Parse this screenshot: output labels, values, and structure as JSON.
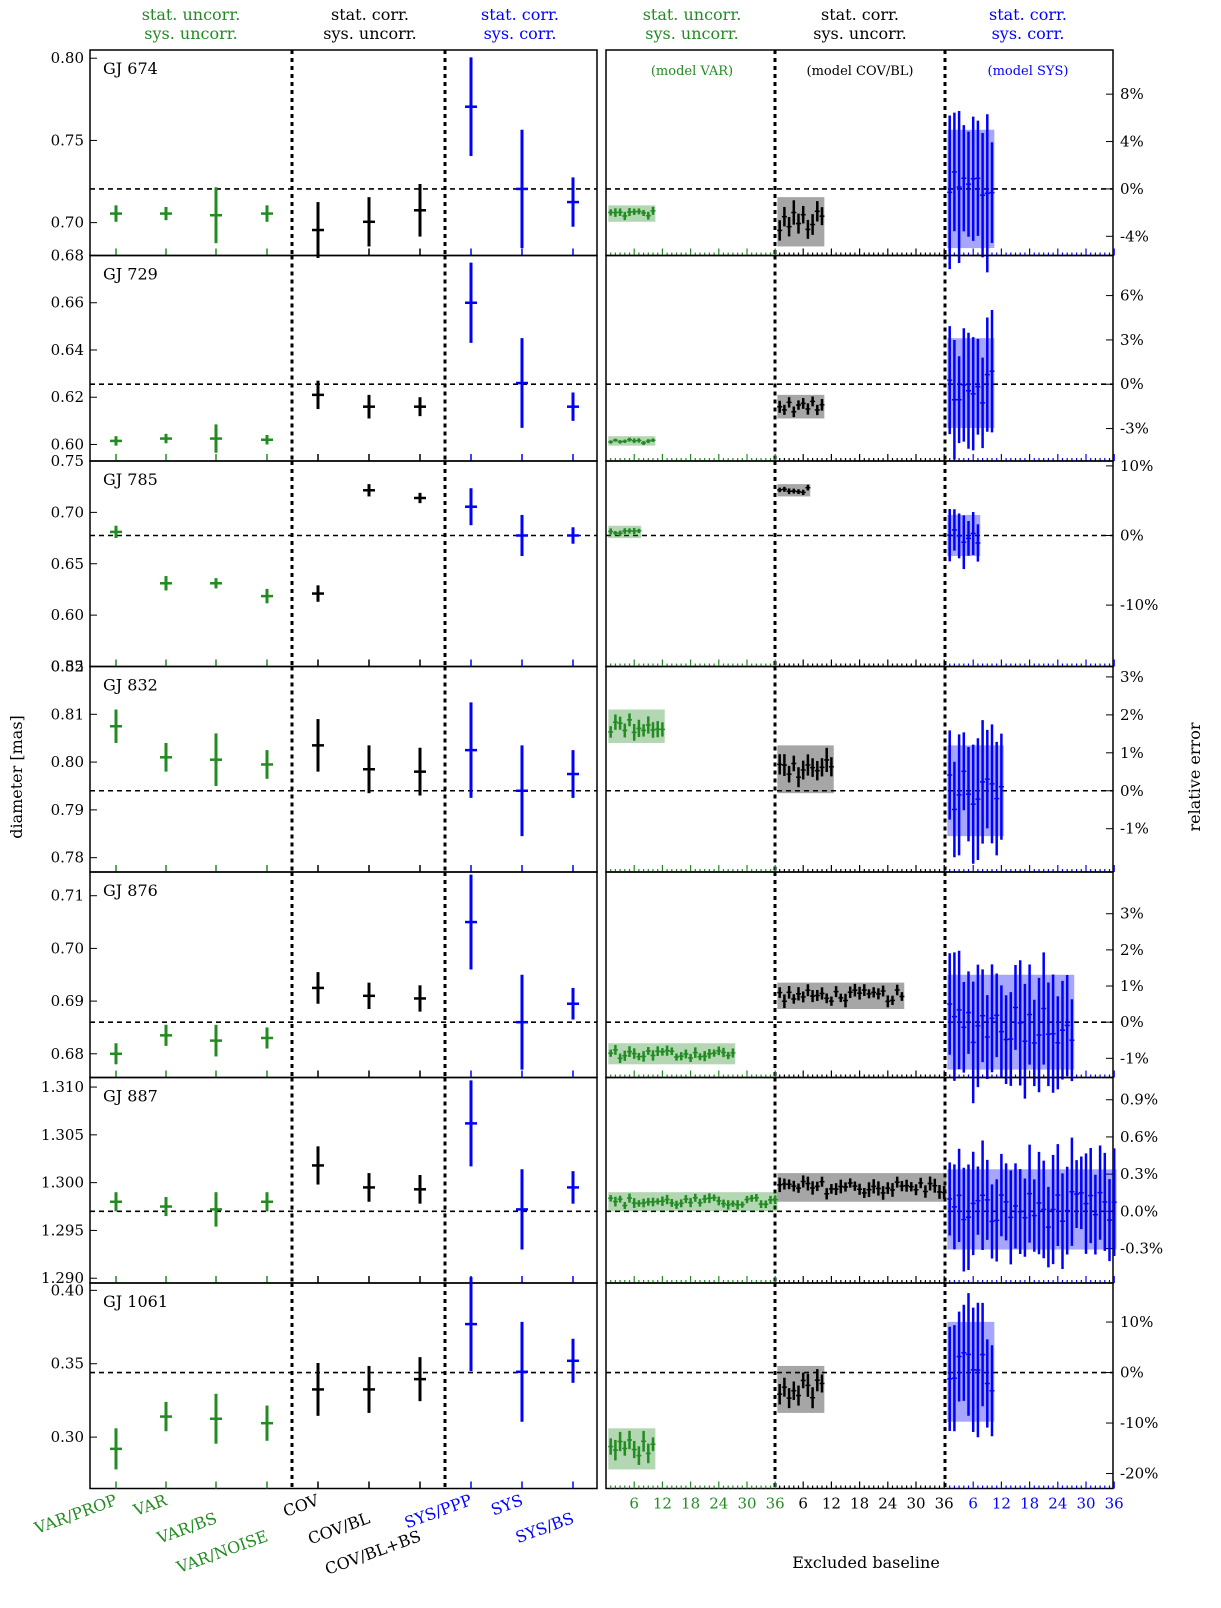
{
  "colors": {
    "green": "#228B22",
    "black": "#000000",
    "blue": "#0000FF"
  },
  "chart_data": {
    "type": "errorbar",
    "ylabel_left": "diameter [mas]",
    "ylabel_right": "relative error",
    "xlabel_right": "Excluded baseline",
    "group_headers": [
      {
        "line1": "stat. uncorr.",
        "line2": "sys. uncorr.",
        "color": "green"
      },
      {
        "line1": "stat. corr.",
        "line2": "sys. uncorr.",
        "color": "black"
      },
      {
        "line1": "stat. corr.",
        "line2": "sys. corr.",
        "color": "blue"
      }
    ],
    "model_labels": [
      {
        "text": "(model VAR)",
        "color": "green"
      },
      {
        "text": "(model COV/BL)",
        "color": "black"
      },
      {
        "text": "(model SYS)",
        "color": "blue"
      }
    ],
    "methods": [
      {
        "label": "VAR/PROP",
        "color": "green"
      },
      {
        "label": "VAR",
        "color": "green"
      },
      {
        "label": "VAR/BS",
        "color": "green"
      },
      {
        "label": "VAR/NOISE",
        "color": "green"
      },
      {
        "label": "COV",
        "color": "black"
      },
      {
        "label": "COV/BL",
        "color": "black"
      },
      {
        "label": "COV/BL+BS",
        "color": "black"
      },
      {
        "label": "SYS/PPP",
        "color": "blue"
      },
      {
        "label": "SYS",
        "color": "blue"
      },
      {
        "label": "SYS/BS",
        "color": "blue"
      }
    ],
    "baseline_ticks": [
      "6",
      "12",
      "18",
      "24",
      "30",
      "36"
    ],
    "stars": [
      {
        "name": "GJ 674",
        "ref": 0.7205,
        "ylim": [
          0.68,
          0.805
        ],
        "yticks": [
          "0.70",
          "0.75",
          "0.80"
        ],
        "rel_ticks": [
          "8%",
          "4%",
          "0%",
          "-4%"
        ],
        "n_baselines": 10,
        "values": [
          [
            0.7055,
            0.005
          ],
          [
            0.7055,
            0.004
          ],
          [
            0.7045,
            0.017
          ],
          [
            0.7055,
            0.005
          ],
          [
            0.6955,
            0.017
          ],
          [
            0.7005,
            0.015
          ],
          [
            0.7075,
            0.016
          ],
          [
            0.7705,
            0.03
          ],
          [
            0.7205,
            0.036
          ],
          [
            0.7125,
            0.015
          ]
        ]
      },
      {
        "name": "GJ 729",
        "ref": 0.6255,
        "ylim": [
          0.593,
          0.68
        ],
        "yticks": [
          "0.60",
          "0.62",
          "0.64",
          "0.66",
          "0.68"
        ],
        "rel_ticks": [
          "6%",
          "3%",
          "0%",
          "-3%"
        ],
        "n_baselines": 10,
        "values": [
          [
            0.6015,
            0.002
          ],
          [
            0.6025,
            0.002
          ],
          [
            0.6025,
            0.006
          ],
          [
            0.602,
            0.002
          ],
          [
            0.621,
            0.006
          ],
          [
            0.616,
            0.005
          ],
          [
            0.616,
            0.004
          ],
          [
            0.66,
            0.017
          ],
          [
            0.626,
            0.019
          ],
          [
            0.616,
            0.006
          ]
        ]
      },
      {
        "name": "GJ 785",
        "ref": 0.6775,
        "ylim": [
          0.55,
          0.75
        ],
        "yticks": [
          "0.55",
          "0.60",
          "0.65",
          "0.70",
          "0.75"
        ],
        "rel_ticks": [
          "10%",
          "0%",
          "-10%"
        ],
        "n_baselines": 7,
        "values": [
          [
            0.681,
            0.006
          ],
          [
            0.631,
            0.007
          ],
          [
            0.631,
            0.005
          ],
          [
            0.6185,
            0.007
          ],
          [
            0.621,
            0.008
          ],
          [
            0.7215,
            0.006
          ],
          [
            0.714,
            0.005
          ],
          [
            0.7055,
            0.018
          ],
          [
            0.6775,
            0.02
          ],
          [
            0.6775,
            0.008
          ]
        ]
      },
      {
        "name": "GJ 832",
        "ref": 0.794,
        "ylim": [
          0.777,
          0.82
        ],
        "yticks": [
          "0.78",
          "0.79",
          "0.80",
          "0.81",
          "0.82"
        ],
        "rel_ticks": [
          "3%",
          "2%",
          "1%",
          "0%",
          "-1%"
        ],
        "n_baselines": 12,
        "values": [
          [
            0.8075,
            0.0035
          ],
          [
            0.801,
            0.003
          ],
          [
            0.8005,
            0.0055
          ],
          [
            0.7995,
            0.003
          ],
          [
            0.8035,
            0.0055
          ],
          [
            0.7985,
            0.005
          ],
          [
            0.798,
            0.005
          ],
          [
            0.8025,
            0.01
          ],
          [
            0.794,
            0.0095
          ],
          [
            0.7975,
            0.005
          ]
        ]
      },
      {
        "name": "GJ 876",
        "ref": 0.686,
        "ylim": [
          0.6755,
          0.7145
        ],
        "yticks": [
          "0.68",
          "0.69",
          "0.70",
          "0.71"
        ],
        "rel_ticks": [
          "3%",
          "2%",
          "1%",
          "0%",
          "-1%"
        ],
        "n_baselines": 27,
        "values": [
          [
            0.68,
            0.002
          ],
          [
            0.6835,
            0.002
          ],
          [
            0.6825,
            0.003
          ],
          [
            0.683,
            0.002
          ],
          [
            0.6925,
            0.003
          ],
          [
            0.691,
            0.0025
          ],
          [
            0.6905,
            0.0025
          ],
          [
            0.705,
            0.009
          ],
          [
            0.686,
            0.009
          ],
          [
            0.6895,
            0.003
          ]
        ]
      },
      {
        "name": "GJ 887",
        "ref": 1.297,
        "ylim": [
          1.2895,
          1.311
        ],
        "yticks": [
          "1.290",
          "1.295",
          "1.300",
          "1.305",
          "1.310"
        ],
        "rel_ticks": [
          "0.9%",
          "0.6%",
          "0.3%",
          "0.0%",
          "-0.3%"
        ],
        "n_baselines": 36,
        "values": [
          [
            1.298,
            0.001
          ],
          [
            1.2975,
            0.001
          ],
          [
            1.2972,
            0.0018
          ],
          [
            1.298,
            0.001
          ],
          [
            1.3018,
            0.002
          ],
          [
            1.2995,
            0.0015
          ],
          [
            1.2993,
            0.0015
          ],
          [
            1.3062,
            0.0045
          ],
          [
            1.2972,
            0.0042
          ],
          [
            1.2995,
            0.0017
          ]
        ]
      },
      {
        "name": "GJ 1061",
        "ref": 0.344,
        "ylim": [
          0.265,
          0.405
        ],
        "yticks": [
          "0.30",
          "0.35",
          "0.40"
        ],
        "rel_ticks": [
          "10%",
          "0%",
          "-10%",
          "-20%"
        ],
        "n_baselines": 10,
        "values": [
          [
            0.292,
            0.014
          ],
          [
            0.314,
            0.01
          ],
          [
            0.3125,
            0.017
          ],
          [
            0.3095,
            0.012
          ],
          [
            0.3325,
            0.018
          ],
          [
            0.3325,
            0.016
          ],
          [
            0.3395,
            0.015
          ],
          [
            0.377,
            0.032
          ],
          [
            0.3445,
            0.034
          ],
          [
            0.352,
            0.015
          ]
        ]
      }
    ]
  }
}
